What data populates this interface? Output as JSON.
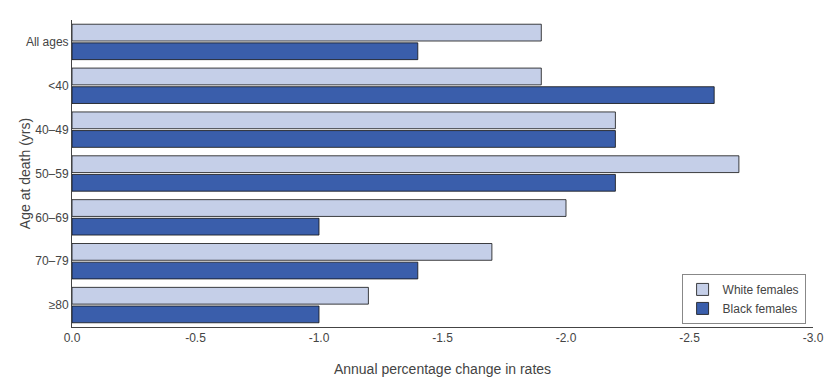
{
  "chart_data": {
    "type": "bar",
    "orientation": "horizontal",
    "categories": [
      "All ages",
      "<40",
      "40–49",
      "50–59",
      "60–69",
      "70–79",
      "≥80"
    ],
    "series": [
      {
        "name": "White females",
        "color": "#c5cfe8",
        "values": [
          -1.9,
          -1.9,
          -2.2,
          -2.7,
          -2.0,
          -1.7,
          -1.2
        ]
      },
      {
        "name": "Black females",
        "color": "#3a5eab",
        "values": [
          -1.4,
          -2.6,
          -2.2,
          -2.2,
          -1.0,
          -1.4,
          -1.0
        ]
      }
    ],
    "xlabel": "Annual percentage change in rates",
    "ylabel": "Age at death (yrs)",
    "xlim": [
      0.0,
      -3.0
    ],
    "xticks": [
      {
        "value": 0.0,
        "label": "0.0"
      },
      -0.5,
      {
        "value": -1.0,
        "label": "-1.0"
      },
      -1.5,
      {
        "value": -2.0,
        "label": "-2.0"
      },
      -2.5,
      {
        "value": -3.0,
        "label": "-3.0"
      }
    ],
    "grid": false,
    "legend": "lower right"
  }
}
